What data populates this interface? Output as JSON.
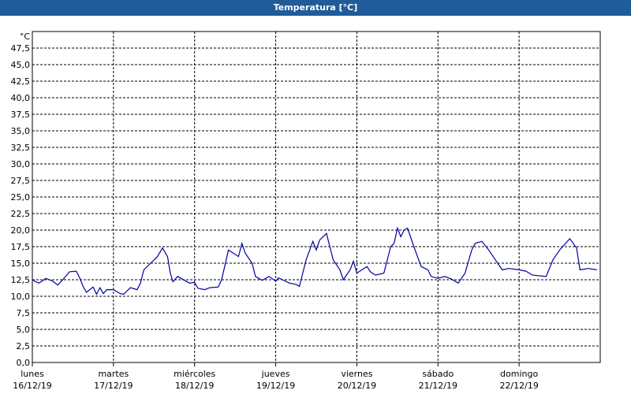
{
  "window_title": "Temperatura [°C]",
  "chart_data": {
    "type": "line",
    "y_unit": "°C",
    "xlim": [
      0,
      168
    ],
    "xticks": [
      {
        "value": 0,
        "label": "lunes",
        "date": "16/12/19"
      },
      {
        "value": 24,
        "label": "martes",
        "date": "17/12/19"
      },
      {
        "value": 48,
        "label": "miércoles",
        "date": "18/12/19"
      },
      {
        "value": 72,
        "label": "jueves",
        "date": "19/12/19"
      },
      {
        "value": 96,
        "label": "viernes",
        "date": "20/12/19"
      },
      {
        "value": 120,
        "label": "sábado",
        "date": "21/12/19"
      },
      {
        "value": 144,
        "label": "domingo",
        "date": "22/12/19"
      }
    ],
    "ylim": [
      0,
      50
    ],
    "yticks": [
      {
        "value": 0,
        "label": "0,0"
      },
      {
        "value": 2.5,
        "label": "2,5"
      },
      {
        "value": 5,
        "label": "5,0"
      },
      {
        "value": 7.5,
        "label": "7,5"
      },
      {
        "value": 10,
        "label": "10,0"
      },
      {
        "value": 12.5,
        "label": "12,5"
      },
      {
        "value": 15,
        "label": "15,0"
      },
      {
        "value": 17.5,
        "label": "17,5"
      },
      {
        "value": 20,
        "label": "20,0"
      },
      {
        "value": 22.5,
        "label": "22,5"
      },
      {
        "value": 25,
        "label": "25,0"
      },
      {
        "value": 27.5,
        "label": "27,5"
      },
      {
        "value": 30,
        "label": "30,0"
      },
      {
        "value": 32.5,
        "label": "32,5"
      },
      {
        "value": 35,
        "label": "35,0"
      },
      {
        "value": 37.5,
        "label": "37,5"
      },
      {
        "value": 40,
        "label": "40,0"
      },
      {
        "value": 42.5,
        "label": "42,5"
      },
      {
        "value": 45,
        "label": "45,0"
      },
      {
        "value": 47.5,
        "label": "47,5"
      }
    ],
    "grid": true,
    "series": [
      {
        "color": "#0000a0",
        "x": [
          0,
          1,
          2,
          4,
          6,
          7.5,
          9,
          11,
          13,
          14,
          15,
          16,
          18,
          19,
          20,
          21,
          22,
          24,
          26,
          27,
          29,
          31,
          32,
          33,
          35,
          37,
          38.5,
          40,
          40.8,
          41.6,
          43,
          45,
          46.5,
          48,
          49,
          51,
          52.5,
          55,
          56,
          58,
          61,
          62,
          63,
          65,
          66,
          68,
          70,
          72,
          72.8,
          74,
          76,
          78,
          79,
          81,
          83,
          84,
          85,
          87,
          89,
          91,
          92,
          94,
          95,
          96,
          97.5,
          99,
          100,
          101.5,
          104,
          106,
          107,
          108,
          109,
          110,
          111,
          113,
          115,
          117,
          118,
          120,
          122,
          124,
          126,
          128,
          130,
          131,
          133,
          135,
          137,
          139,
          141,
          144,
          146,
          148,
          152,
          154,
          156,
          159,
          161,
          162,
          164.5,
          167
        ],
        "values": [
          12.5,
          12.2,
          12.0,
          12.7,
          12.3,
          11.7,
          12.5,
          13.7,
          13.8,
          12.8,
          11.5,
          10.6,
          11.4,
          10.3,
          11.3,
          10.4,
          11.0,
          11.0,
          10.4,
          10.3,
          11.3,
          11.0,
          12.0,
          14.0,
          15.0,
          16.0,
          17.3,
          16.0,
          13.5,
          12.2,
          13.0,
          12.4,
          12.0,
          12.1,
          11.2,
          11.0,
          11.3,
          11.4,
          12.5,
          17.0,
          16.0,
          18.0,
          16.5,
          15.0,
          13.0,
          12.4,
          13.0,
          12.3,
          12.8,
          12.5,
          12.0,
          11.8,
          11.5,
          15.5,
          18.3,
          17.0,
          18.5,
          19.5,
          15.5,
          14.0,
          12.5,
          14.0,
          15.3,
          13.5,
          14.0,
          14.5,
          13.7,
          13.2,
          13.5,
          17.5,
          18.0,
          20.3,
          19.0,
          20.0,
          20.3,
          17.3,
          14.5,
          14.0,
          13.0,
          12.7,
          13.0,
          12.6,
          12.0,
          13.5,
          17.0,
          18.0,
          18.3,
          17.0,
          15.5,
          14.0,
          14.2,
          14.0,
          13.8,
          13.2,
          13.0,
          15.5,
          17.0,
          18.7,
          17.3,
          14.0,
          14.2,
          14.0
        ]
      }
    ]
  }
}
